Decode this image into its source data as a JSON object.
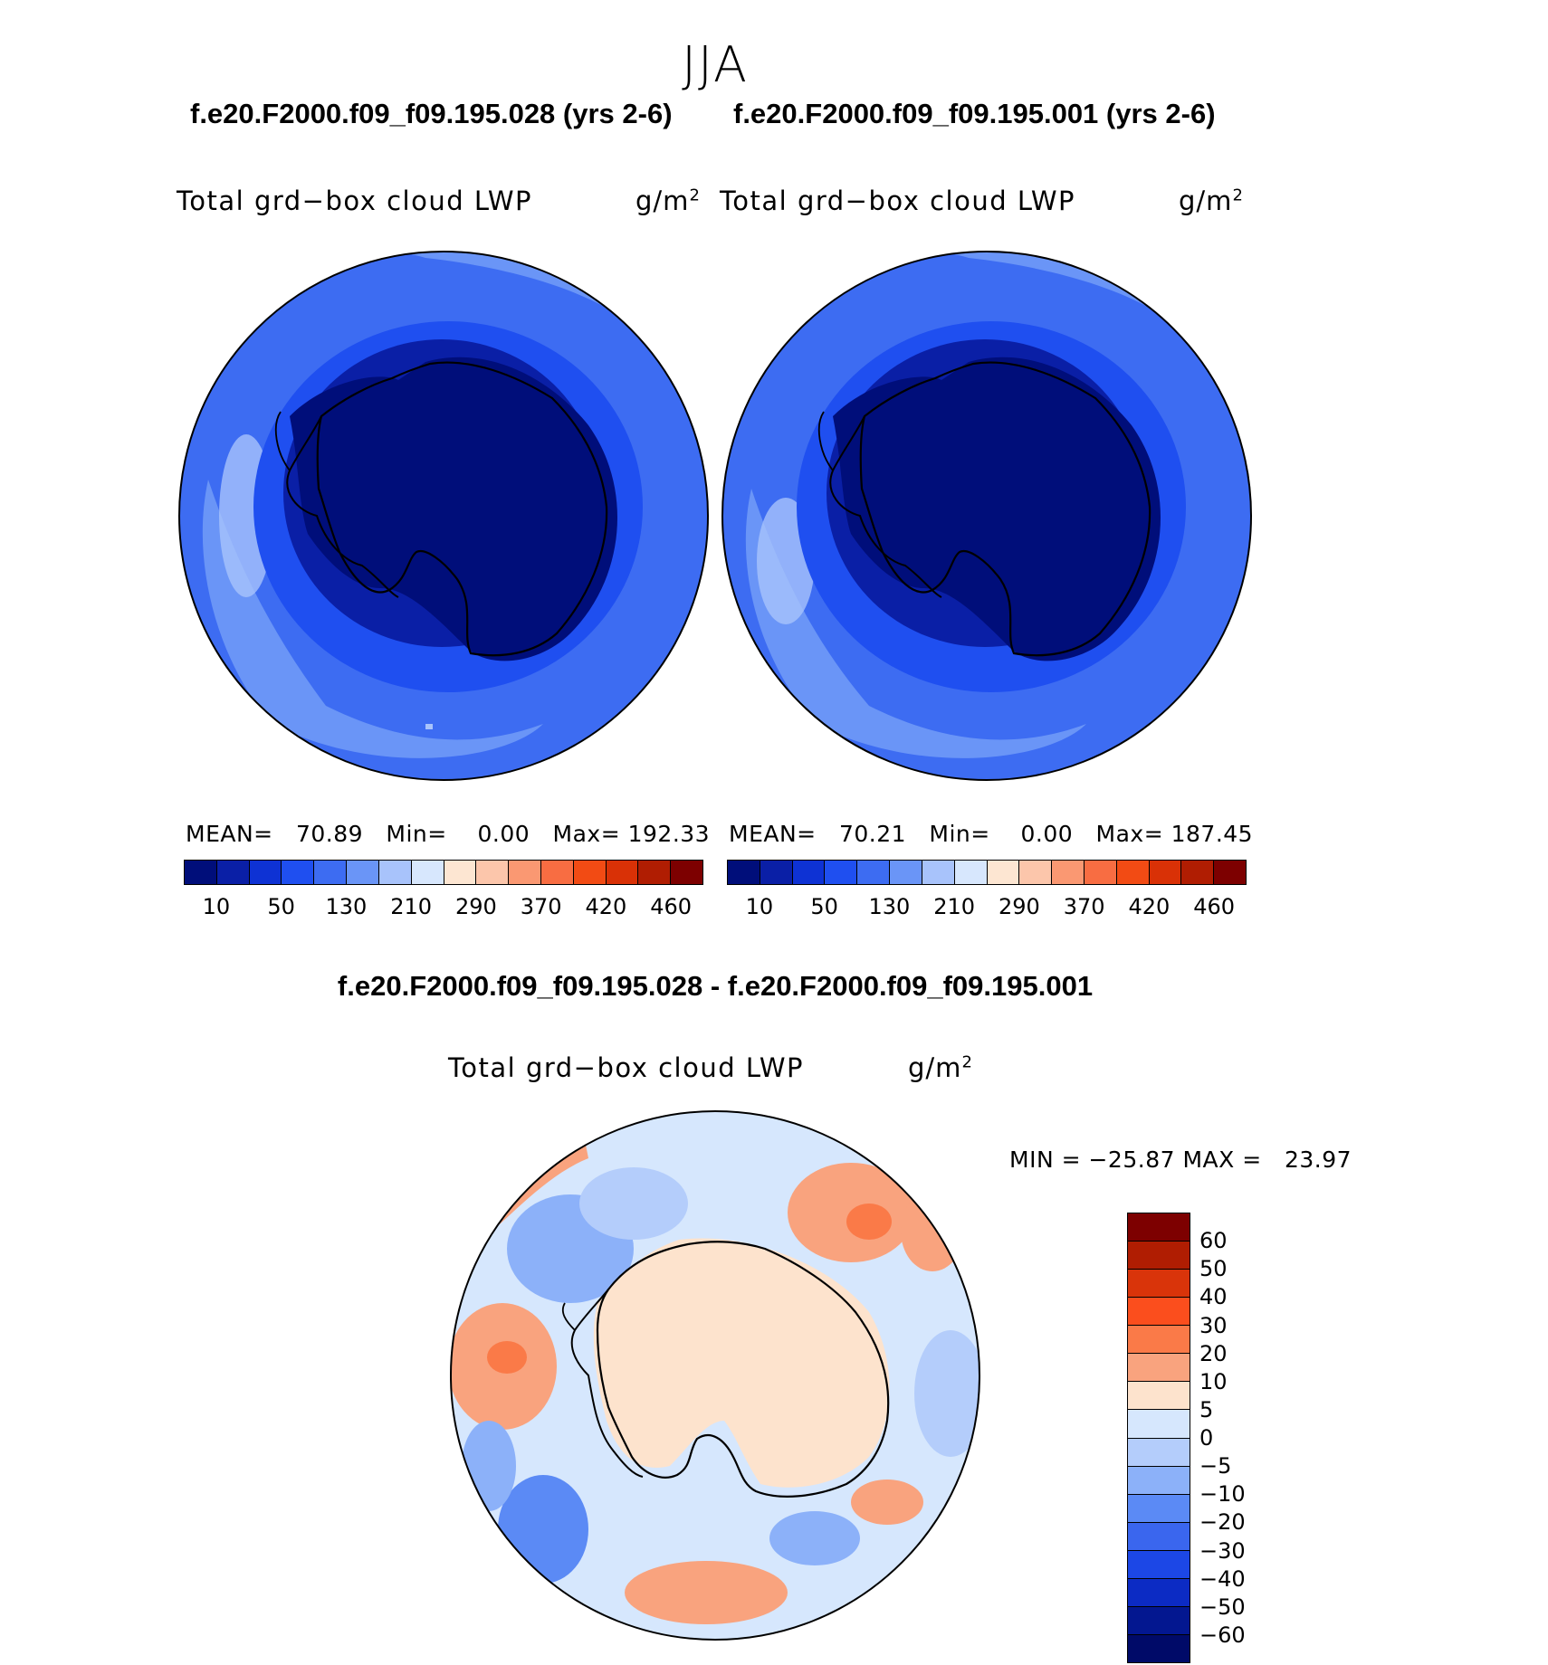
{
  "season": "JJA",
  "panel_left": {
    "case": "f.e20.F2000.f09_f09.195.028 (yrs 2-6)",
    "var_title": "Total grd−box cloud LWP",
    "units_base": "g/m",
    "units_exp": "2",
    "mean_label": "MEAN=",
    "mean": "70.89",
    "min_label": "Min=",
    "min": "0.00",
    "max_label": "Max=",
    "max": "192.33"
  },
  "panel_right": {
    "case": "f.e20.F2000.f09_f09.195.001 (yrs 2-6)",
    "var_title": "Total grd−box cloud LWP",
    "units_base": "g/m",
    "units_exp": "2",
    "mean_label": "MEAN=",
    "mean": "70.21",
    "min_label": "Min=",
    "min": "0.00",
    "max_label": "Max=",
    "max": "187.45"
  },
  "panel_diff": {
    "case": "f.e20.F2000.f09_f09.195.028 - f.e20.F2000.f09_f09.195.001",
    "var_title": "Total grd−box cloud LWP",
    "units_base": "g/m",
    "units_exp": "2",
    "minmax": "MIN = −25.87 MAX =   23.97"
  },
  "chart_data": [
    {
      "type": "heatmap",
      "title": "Total grd-box cloud LWP (g/m^2) - f.e20.F2000.f09_f09.195.028 (yrs 2-6)",
      "projection": "south polar stereographic",
      "stats": {
        "mean": 70.89,
        "min": 0.0,
        "max": 192.33
      },
      "colorbar_levels": [
        10,
        50,
        130,
        210,
        290,
        370,
        420,
        460
      ],
      "colorbar_tick_labels": [
        "10",
        "50",
        "130",
        "210",
        "290",
        "370",
        "420",
        "460"
      ]
    },
    {
      "type": "heatmap",
      "title": "Total grd-box cloud LWP (g/m^2) - f.e20.F2000.f09_f09.195.001 (yrs 2-6)",
      "projection": "south polar stereographic",
      "stats": {
        "mean": 70.21,
        "min": 0.0,
        "max": 187.45
      },
      "colorbar_levels": [
        10,
        50,
        130,
        210,
        290,
        370,
        420,
        460
      ],
      "colorbar_tick_labels": [
        "10",
        "50",
        "130",
        "210",
        "290",
        "370",
        "420",
        "460"
      ]
    },
    {
      "type": "heatmap",
      "title": "Total grd-box cloud LWP difference (g/m^2)",
      "projection": "south polar stereographic",
      "stats": {
        "min": -25.87,
        "max": 23.97
      },
      "colorbar_levels": [
        60,
        50,
        40,
        30,
        20,
        10,
        5,
        0,
        -5,
        -10,
        -20,
        -30,
        -40,
        -50,
        -60
      ],
      "colorbar_tick_labels": [
        "60",
        "50",
        "40",
        "30",
        "20",
        "10",
        "5",
        "0",
        "−5",
        "−10",
        "−20",
        "−30",
        "−40",
        "−50",
        "−60"
      ]
    }
  ],
  "colors": {
    "seq": [
      "#000e7a",
      "#0a1fa6",
      "#0e32d4",
      "#1f4ff0",
      "#3d6cf2",
      "#6a95f7",
      "#a8c3fb",
      "#d7e7fd",
      "#fde6d2",
      "#fcc6ab",
      "#fa9872",
      "#f86d42",
      "#f24b14",
      "#d93106",
      "#b01d02",
      "#7d0000"
    ],
    "div": [
      "#7d0000",
      "#b01d02",
      "#d9340a",
      "#fb4e1d",
      "#fa7a48",
      "#f9a37e",
      "#fde3cd",
      "#d6e7fd",
      "#b4cdfb",
      "#8cb1f9",
      "#5b8af5",
      "#3a66ee",
      "#1c47e6",
      "#0c2bc4",
      "#031790",
      "#000a68"
    ],
    "land_outline": "#000000"
  }
}
